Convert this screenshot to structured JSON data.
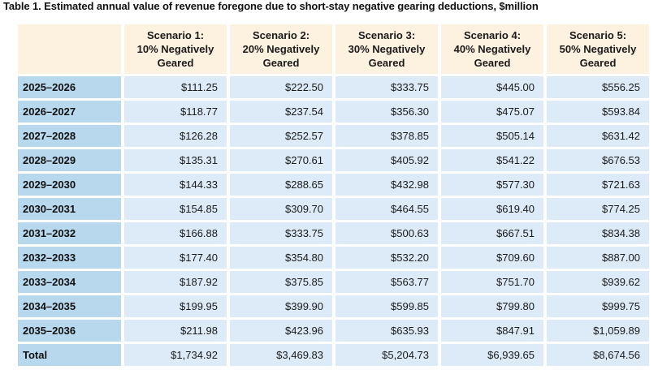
{
  "caption": "Table 1. Estimated annual value of revenue foregone due to short-stay negative gearing deductions, $million",
  "columns": [
    "Scenario 1:\n10% Negatively\nGeared",
    "Scenario 2:\n20% Negatively\nGeared",
    "Scenario 3:\n30% Negatively\nGeared",
    "Scenario 4:\n40% Negatively\nGeared",
    "Scenario 5:\n50% Negatively\nGeared"
  ],
  "rows": [
    {
      "label": "2025–2026",
      "values": [
        "$111.25",
        "$222.50",
        "$333.75",
        "$445.00",
        "$556.25"
      ]
    },
    {
      "label": "2026–2027",
      "values": [
        "$118.77",
        "$237.54",
        "$356.30",
        "$475.07",
        "$593.84"
      ]
    },
    {
      "label": "2027–2028",
      "values": [
        "$126.28",
        "$252.57",
        "$378.85",
        "$505.14",
        "$631.42"
      ]
    },
    {
      "label": "2028–2029",
      "values": [
        "$135.31",
        "$270.61",
        "$405.92",
        "$541.22",
        "$676.53"
      ]
    },
    {
      "label": "2029–2030",
      "values": [
        "$144.33",
        "$288.65",
        "$432.98",
        "$577.30",
        "$721.63"
      ]
    },
    {
      "label": "2030–2031",
      "values": [
        "$154.85",
        "$309.70",
        "$464.55",
        "$619.40",
        "$774.25"
      ]
    },
    {
      "label": "2031–2032",
      "values": [
        "$166.88",
        "$333.75",
        "$500.63",
        "$667.51",
        "$834.38"
      ]
    },
    {
      "label": "2032–2033",
      "values": [
        "$177.40",
        "$354.80",
        "$532.20",
        "$709.60",
        "$887.00"
      ]
    },
    {
      "label": "2033–2034",
      "values": [
        "$187.92",
        "$375.85",
        "$563.77",
        "$751.70",
        "$939.62"
      ]
    },
    {
      "label": "2034–2035",
      "values": [
        "$199.95",
        "$399.90",
        "$599.85",
        "$799.80",
        "$999.75"
      ]
    },
    {
      "label": "2035–2036",
      "values": [
        "$211.98",
        "$423.96",
        "$635.93",
        "$847.91",
        "$1,059.89"
      ]
    }
  ],
  "total": {
    "label": "Total",
    "values": [
      "$1,734.92",
      "$3,469.83",
      "$5,204.73",
      "$6,939.65",
      "$8,674.56"
    ]
  },
  "colors": {
    "header_bg": "#fdf1e0",
    "row_label_bg": "#b8d8ee",
    "cell_bg": "#dcebf7"
  }
}
